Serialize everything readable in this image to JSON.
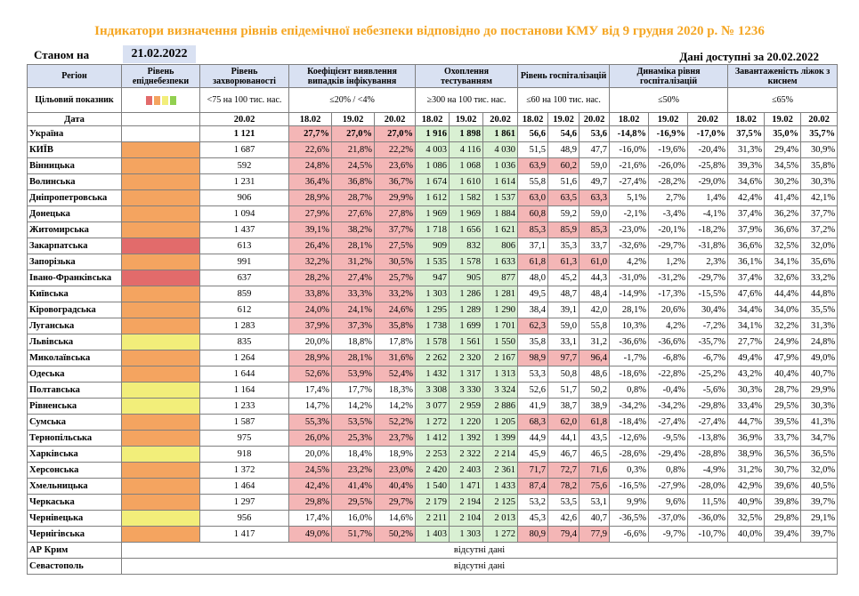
{
  "title": "Індикатори визначення рівнів епідемічної небезпеки відповідно до постанови КМУ від 9 грудня 2020 р. № 1236",
  "as_of_label": "Станом на",
  "as_of_date": "21.02.2022",
  "data_available": "Дані доступні за 20.02.2022",
  "colors": {
    "red": "#e26b6b",
    "orange": "#f4a460",
    "yellow": "#f2ee7a",
    "green": "#92d050",
    "title": "#f5a623"
  },
  "headers": {
    "region": "Регіон",
    "level": "Рівень епіднебезпеки",
    "morbidity": "Рівень захворюваності",
    "detection": "Коефіцієнт виявлення випадків інфікування",
    "testing": "Охоплення тестуванням",
    "hosp": "Рівень госпіталізацій",
    "hosp_dyn": "Динаміка рівня госпіталізацій",
    "beds": "Завантаженість ліжок з киснем"
  },
  "targets": {
    "label": "Цільовий показник",
    "level_swatches": [
      "red",
      "orange",
      "yellow",
      "green"
    ],
    "morbidity": "<75 на 100 тис. нас.",
    "detection": "≤20% / <4%",
    "testing": "≥300 на 100 тис. нас.",
    "hosp": "≤60 на 100 тис. нас.",
    "hosp_dyn": "≤50%",
    "beds": "≤65%"
  },
  "dates": {
    "label": "Дата",
    "morbidity": "20.02",
    "triple": [
      "18.02",
      "19.02",
      "20.02"
    ]
  },
  "rows": [
    {
      "region": "Україна",
      "level": "",
      "m": "1 121",
      "det": [
        "27,7%",
        "27,0%",
        "27,0%"
      ],
      "tst": [
        "1 916",
        "1 898",
        "1 861"
      ],
      "hos": [
        "56,6",
        "54,6",
        "53,6"
      ],
      "dyn": [
        "-14,8%",
        "-16,9%",
        "-17,0%"
      ],
      "bed": [
        "37,5%",
        "35,0%",
        "35,7%"
      ]
    },
    {
      "region": "КИЇВ",
      "level": "orange",
      "m": "1 687",
      "det": [
        "22,6%",
        "21,8%",
        "22,2%"
      ],
      "tst": [
        "4 003",
        "4 116",
        "4 030"
      ],
      "hos": [
        "51,5",
        "48,9",
        "47,7"
      ],
      "dyn": [
        "-16,0%",
        "-19,6%",
        "-20,4%"
      ],
      "bed": [
        "31,3%",
        "29,4%",
        "30,9%"
      ]
    },
    {
      "region": "Вінницька",
      "level": "orange",
      "m": "592",
      "det": [
        "24,8%",
        "24,5%",
        "23,6%"
      ],
      "tst": [
        "1 086",
        "1 068",
        "1 036"
      ],
      "hos": [
        "63,9",
        "60,2",
        "59,0"
      ],
      "dyn": [
        "-21,6%",
        "-26,0%",
        "-25,8%"
      ],
      "bed": [
        "39,3%",
        "34,5%",
        "35,8%"
      ]
    },
    {
      "region": "Волинська",
      "level": "orange",
      "m": "1 231",
      "det": [
        "36,4%",
        "36,8%",
        "36,7%"
      ],
      "tst": [
        "1 674",
        "1 610",
        "1 614"
      ],
      "hos": [
        "55,8",
        "51,6",
        "49,7"
      ],
      "dyn": [
        "-27,4%",
        "-28,2%",
        "-29,0%"
      ],
      "bed": [
        "34,6%",
        "30,2%",
        "30,3%"
      ]
    },
    {
      "region": "Дніпропетровська",
      "level": "orange",
      "m": "906",
      "det": [
        "28,9%",
        "28,7%",
        "29,9%"
      ],
      "tst": [
        "1 612",
        "1 582",
        "1 537"
      ],
      "hos": [
        "63,0",
        "63,5",
        "63,3"
      ],
      "dyn": [
        "5,1%",
        "2,7%",
        "1,4%"
      ],
      "bed": [
        "42,4%",
        "41,4%",
        "42,1%"
      ]
    },
    {
      "region": "Донецька",
      "level": "orange",
      "m": "1 094",
      "det": [
        "27,9%",
        "27,6%",
        "27,8%"
      ],
      "tst": [
        "1 969",
        "1 969",
        "1 884"
      ],
      "hos": [
        "60,8",
        "59,2",
        "59,0"
      ],
      "dyn": [
        "-2,1%",
        "-3,4%",
        "-4,1%"
      ],
      "bed": [
        "37,4%",
        "36,2%",
        "37,7%"
      ]
    },
    {
      "region": "Житомирська",
      "level": "orange",
      "m": "1 437",
      "det": [
        "39,1%",
        "38,2%",
        "37,7%"
      ],
      "tst": [
        "1 718",
        "1 656",
        "1 621"
      ],
      "hos": [
        "85,3",
        "85,9",
        "85,3"
      ],
      "dyn": [
        "-23,0%",
        "-20,1%",
        "-18,2%"
      ],
      "bed": [
        "37,9%",
        "36,6%",
        "37,2%"
      ]
    },
    {
      "region": "Закарпатська",
      "level": "red",
      "m": "613",
      "det": [
        "26,4%",
        "28,1%",
        "27,5%"
      ],
      "tst": [
        "909",
        "832",
        "806"
      ],
      "hos": [
        "37,1",
        "35,3",
        "33,7"
      ],
      "dyn": [
        "-32,6%",
        "-29,7%",
        "-31,8%"
      ],
      "bed": [
        "36,6%",
        "32,5%",
        "32,0%"
      ]
    },
    {
      "region": "Запорізька",
      "level": "orange",
      "m": "991",
      "det": [
        "32,2%",
        "31,2%",
        "30,5%"
      ],
      "tst": [
        "1 535",
        "1 578",
        "1 633"
      ],
      "hos": [
        "61,8",
        "61,3",
        "61,0"
      ],
      "dyn": [
        "4,2%",
        "1,2%",
        "2,3%"
      ],
      "bed": [
        "36,1%",
        "34,1%",
        "35,6%"
      ]
    },
    {
      "region": "Івано-Франківська",
      "level": "red",
      "m": "637",
      "det": [
        "28,2%",
        "27,4%",
        "25,7%"
      ],
      "tst": [
        "947",
        "905",
        "877"
      ],
      "hos": [
        "48,0",
        "45,2",
        "44,3"
      ],
      "dyn": [
        "-31,0%",
        "-31,2%",
        "-29,7%"
      ],
      "bed": [
        "37,4%",
        "32,6%",
        "33,2%"
      ]
    },
    {
      "region": "Київська",
      "level": "orange",
      "m": "859",
      "det": [
        "33,8%",
        "33,3%",
        "33,2%"
      ],
      "tst": [
        "1 303",
        "1 286",
        "1 281"
      ],
      "hos": [
        "49,5",
        "48,7",
        "48,4"
      ],
      "dyn": [
        "-14,9%",
        "-17,3%",
        "-15,5%"
      ],
      "bed": [
        "47,6%",
        "44,4%",
        "44,8%"
      ]
    },
    {
      "region": "Кіровоградська",
      "level": "orange",
      "m": "612",
      "det": [
        "24,0%",
        "24,1%",
        "24,6%"
      ],
      "tst": [
        "1 295",
        "1 289",
        "1 290"
      ],
      "hos": [
        "38,4",
        "39,1",
        "42,0"
      ],
      "dyn": [
        "28,1%",
        "20,6%",
        "30,4%"
      ],
      "bed": [
        "34,4%",
        "34,0%",
        "35,5%"
      ]
    },
    {
      "region": "Луганська",
      "level": "orange",
      "m": "1 283",
      "det": [
        "37,9%",
        "37,3%",
        "35,8%"
      ],
      "tst": [
        "1 738",
        "1 699",
        "1 701"
      ],
      "hos": [
        "62,3",
        "59,0",
        "55,8"
      ],
      "dyn": [
        "10,3%",
        "4,2%",
        "-7,2%"
      ],
      "bed": [
        "34,1%",
        "32,2%",
        "31,3%"
      ]
    },
    {
      "region": "Львівська",
      "level": "yellow",
      "m": "835",
      "det": [
        "20,0%",
        "18,8%",
        "17,8%"
      ],
      "tst": [
        "1 578",
        "1 561",
        "1 550"
      ],
      "hos": [
        "35,8",
        "33,1",
        "31,2"
      ],
      "dyn": [
        "-36,6%",
        "-36,6%",
        "-35,7%"
      ],
      "bed": [
        "27,7%",
        "24,9%",
        "24,8%"
      ]
    },
    {
      "region": "Миколаївська",
      "level": "orange",
      "m": "1 264",
      "det": [
        "28,9%",
        "28,1%",
        "31,6%"
      ],
      "tst": [
        "2 262",
        "2 320",
        "2 167"
      ],
      "hos": [
        "98,9",
        "97,7",
        "96,4"
      ],
      "dyn": [
        "-1,7%",
        "-6,8%",
        "-6,7%"
      ],
      "bed": [
        "49,4%",
        "47,9%",
        "49,0%"
      ]
    },
    {
      "region": "Одеська",
      "level": "orange",
      "m": "1 644",
      "det": [
        "52,6%",
        "53,9%",
        "52,4%"
      ],
      "tst": [
        "1 432",
        "1 317",
        "1 313"
      ],
      "hos": [
        "53,3",
        "50,8",
        "48,6"
      ],
      "dyn": [
        "-18,6%",
        "-22,8%",
        "-25,2%"
      ],
      "bed": [
        "43,2%",
        "40,4%",
        "40,7%"
      ]
    },
    {
      "region": "Полтавська",
      "level": "yellow",
      "m": "1 164",
      "det": [
        "17,4%",
        "17,7%",
        "18,3%"
      ],
      "tst": [
        "3 308",
        "3 330",
        "3 324"
      ],
      "hos": [
        "52,6",
        "51,7",
        "50,2"
      ],
      "dyn": [
        "0,8%",
        "-0,4%",
        "-5,6%"
      ],
      "bed": [
        "30,3%",
        "28,7%",
        "29,9%"
      ]
    },
    {
      "region": "Рівненська",
      "level": "yellow",
      "m": "1 233",
      "det": [
        "14,7%",
        "14,2%",
        "14,2%"
      ],
      "tst": [
        "3 077",
        "2 959",
        "2 886"
      ],
      "hos": [
        "41,9",
        "38,7",
        "38,9"
      ],
      "dyn": [
        "-34,2%",
        "-34,2%",
        "-29,8%"
      ],
      "bed": [
        "33,4%",
        "29,5%",
        "30,3%"
      ]
    },
    {
      "region": "Сумська",
      "level": "orange",
      "m": "1 587",
      "det": [
        "55,3%",
        "53,5%",
        "52,2%"
      ],
      "tst": [
        "1 272",
        "1 220",
        "1 205"
      ],
      "hos": [
        "68,3",
        "62,0",
        "61,8"
      ],
      "dyn": [
        "-18,4%",
        "-27,4%",
        "-27,4%"
      ],
      "bed": [
        "44,7%",
        "39,5%",
        "41,3%"
      ]
    },
    {
      "region": "Тернопільська",
      "level": "orange",
      "m": "975",
      "det": [
        "26,0%",
        "25,3%",
        "23,7%"
      ],
      "tst": [
        "1 412",
        "1 392",
        "1 399"
      ],
      "hos": [
        "44,9",
        "44,1",
        "43,5"
      ],
      "dyn": [
        "-12,6%",
        "-9,5%",
        "-13,8%"
      ],
      "bed": [
        "36,9%",
        "33,7%",
        "34,7%"
      ]
    },
    {
      "region": "Харківська",
      "level": "yellow",
      "m": "918",
      "det": [
        "20,0%",
        "18,4%",
        "18,9%"
      ],
      "tst": [
        "2 253",
        "2 322",
        "2 214"
      ],
      "hos": [
        "45,9",
        "46,7",
        "46,5"
      ],
      "dyn": [
        "-28,6%",
        "-29,4%",
        "-28,8%"
      ],
      "bed": [
        "38,9%",
        "36,5%",
        "36,5%"
      ]
    },
    {
      "region": "Херсонська",
      "level": "orange",
      "m": "1 372",
      "det": [
        "24,5%",
        "23,2%",
        "23,0%"
      ],
      "tst": [
        "2 420",
        "2 403",
        "2 361"
      ],
      "hos": [
        "71,7",
        "72,7",
        "71,6"
      ],
      "dyn": [
        "0,3%",
        "0,8%",
        "-4,9%"
      ],
      "bed": [
        "31,2%",
        "30,7%",
        "32,0%"
      ]
    },
    {
      "region": "Хмельницька",
      "level": "orange",
      "m": "1 464",
      "det": [
        "42,4%",
        "41,4%",
        "40,4%"
      ],
      "tst": [
        "1 540",
        "1 471",
        "1 433"
      ],
      "hos": [
        "87,4",
        "78,2",
        "75,6"
      ],
      "dyn": [
        "-16,5%",
        "-27,9%",
        "-28,0%"
      ],
      "bed": [
        "42,9%",
        "39,6%",
        "40,5%"
      ]
    },
    {
      "region": "Черкаська",
      "level": "orange",
      "m": "1 297",
      "det": [
        "29,8%",
        "29,5%",
        "29,7%"
      ],
      "tst": [
        "2 179",
        "2 194",
        "2 125"
      ],
      "hos": [
        "53,2",
        "53,5",
        "53,1"
      ],
      "dyn": [
        "9,9%",
        "9,6%",
        "11,5%"
      ],
      "bed": [
        "40,9%",
        "39,8%",
        "39,7%"
      ]
    },
    {
      "region": "Чернівецька",
      "level": "yellow",
      "m": "956",
      "det": [
        "17,4%",
        "16,0%",
        "14,6%"
      ],
      "tst": [
        "2 211",
        "2 104",
        "2 013"
      ],
      "hos": [
        "45,3",
        "42,6",
        "40,7"
      ],
      "dyn": [
        "-36,5%",
        "-37,0%",
        "-36,0%"
      ],
      "bed": [
        "32,5%",
        "29,8%",
        "29,1%"
      ]
    },
    {
      "region": "Чернігівська",
      "level": "orange",
      "m": "1 417",
      "det": [
        "49,0%",
        "51,7%",
        "50,2%"
      ],
      "tst": [
        "1 403",
        "1 303",
        "1 272"
      ],
      "hos": [
        "80,9",
        "79,4",
        "77,9"
      ],
      "dyn": [
        "-6,6%",
        "-9,7%",
        "-10,7%"
      ],
      "bed": [
        "40,0%",
        "39,4%",
        "39,7%"
      ]
    }
  ],
  "missing_rows": [
    {
      "region": "АР Крим",
      "note": "відсутні дані"
    },
    {
      "region": "Севастополь",
      "note": "відсутні дані"
    }
  ]
}
